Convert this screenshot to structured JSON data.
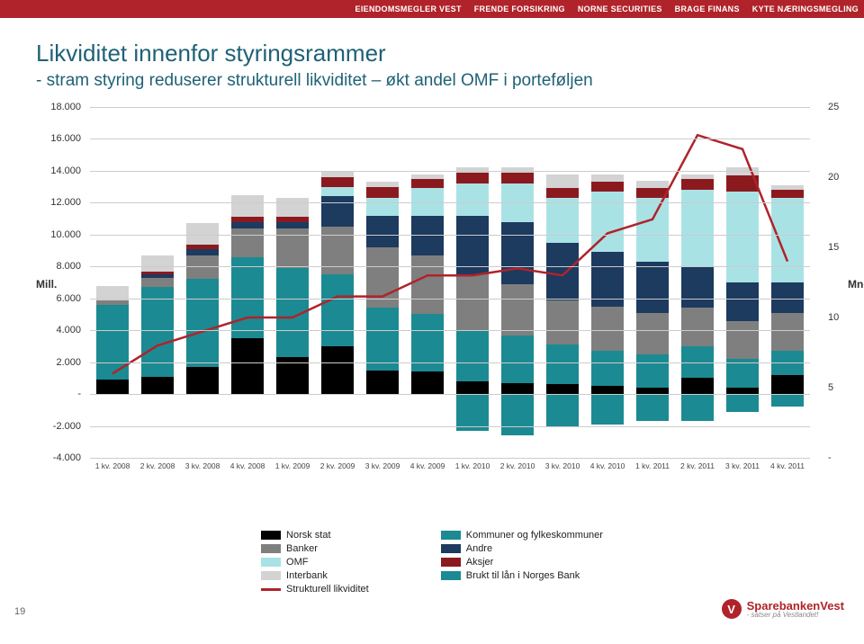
{
  "topbar": {
    "items": [
      "EIENDOMSMEGLER VEST",
      "FRENDE FORSIKRING",
      "NORNE SECURITIES",
      "BRAGE FINANS",
      "KYTE NÆRINGSMEGLING"
    ],
    "bg_color": "#b0232a",
    "text_color": "#ffffff"
  },
  "title": {
    "line1": "Likviditet innenfor styringsrammer",
    "line2": "- stram styring reduserer strukturell likviditet – økt andel OMF i porteføljen",
    "color": "#1f6176"
  },
  "chart": {
    "type": "stacked-bar-dual-axis-with-line",
    "left_axis": {
      "label": "Mill.",
      "min": -4000,
      "max": 18000,
      "ticks": [
        18000,
        16000,
        14000,
        12000,
        10000,
        8000,
        6000,
        4000,
        2000,
        0,
        -2000,
        -4000
      ],
      "tick_labels": [
        "18.000",
        "16.000",
        "14.000",
        "12.000",
        "10.000",
        "8.000",
        "6.000",
        "4.000",
        "2.000",
        "-",
        "-2.000",
        "-4.000"
      ]
    },
    "right_axis": {
      "label": "Mnd.",
      "min": 0,
      "max": 25,
      "ticks": [
        25,
        20,
        15,
        10,
        5,
        0
      ],
      "tick_labels": [
        "25",
        "20",
        "15",
        "10",
        "5",
        "-"
      ]
    },
    "categories": [
      "1 kv. 2008",
      "2 kv. 2008",
      "3 kv. 2008",
      "4 kv. 2008",
      "1 kv. 2009",
      "2 kv. 2009",
      "3 kv. 2009",
      "4 kv. 2009",
      "1 kv. 2010",
      "2 kv. 2010",
      "3 kv. 2010",
      "4 kv. 2010",
      "1 kv. 2011",
      "2 kv. 2011",
      "3 kv. 2011",
      "4 kv. 2011"
    ],
    "grid_color": "#cccccc",
    "series_order": [
      "norsk_stat",
      "kommuner",
      "banker",
      "andre",
      "omf",
      "aksjer",
      "interbank",
      "brukt_lan"
    ],
    "colors": {
      "norsk_stat": "#000000",
      "kommuner": "#1c8a92",
      "banker": "#7f7f7f",
      "andre": "#1d3a5f",
      "omf": "#a9e2e5",
      "aksjer": "#8b1a1f",
      "interbank": "#d3d3d3",
      "brukt_lan": "#1c8a92",
      "line": "#b0232a"
    },
    "stacks": [
      {
        "norsk_stat": 900,
        "kommuner": 4700,
        "banker": 300,
        "andre": 0,
        "omf": 0,
        "aksjer": 0,
        "interbank": 900,
        "brukt_lan": 0
      },
      {
        "norsk_stat": 1100,
        "kommuner": 5600,
        "banker": 600,
        "andre": 200,
        "omf": 0,
        "aksjer": 200,
        "interbank": 1000,
        "brukt_lan": 0
      },
      {
        "norsk_stat": 1700,
        "kommuner": 5500,
        "banker": 1500,
        "andre": 400,
        "omf": 0,
        "aksjer": 300,
        "interbank": 1300,
        "brukt_lan": 0
      },
      {
        "norsk_stat": 3500,
        "kommuner": 5100,
        "banker": 1800,
        "andre": 400,
        "omf": 0,
        "aksjer": 300,
        "interbank": 1400,
        "brukt_lan": 0
      },
      {
        "norsk_stat": 2300,
        "kommuner": 5600,
        "banker": 2500,
        "andre": 400,
        "omf": 0,
        "aksjer": 300,
        "interbank": 1200,
        "brukt_lan": 0
      },
      {
        "norsk_stat": 3000,
        "kommuner": 4500,
        "banker": 3000,
        "andre": 1900,
        "omf": 600,
        "aksjer": 600,
        "interbank": 400,
        "brukt_lan": 0
      },
      {
        "norsk_stat": 1500,
        "kommuner": 3900,
        "banker": 3800,
        "andre": 2000,
        "omf": 1100,
        "aksjer": 700,
        "interbank": 300,
        "brukt_lan": 0
      },
      {
        "norsk_stat": 1400,
        "kommuner": 3600,
        "banker": 3700,
        "andre": 2500,
        "omf": 1700,
        "aksjer": 600,
        "interbank": 300,
        "brukt_lan": 0
      },
      {
        "norsk_stat": 800,
        "kommuner": 3200,
        "banker": 3500,
        "andre": 3700,
        "omf": 2000,
        "aksjer": 700,
        "interbank": 300,
        "brukt_lan": -2300
      },
      {
        "norsk_stat": 700,
        "kommuner": 3000,
        "banker": 3200,
        "andre": 3900,
        "omf": 2400,
        "aksjer": 700,
        "interbank": 300,
        "brukt_lan": -2600
      },
      {
        "norsk_stat": 600,
        "kommuner": 2500,
        "banker": 2800,
        "andre": 3600,
        "omf": 2800,
        "aksjer": 600,
        "interbank": 900,
        "brukt_lan": -2000
      },
      {
        "norsk_stat": 500,
        "kommuner": 2200,
        "banker": 2800,
        "andre": 3400,
        "omf": 3800,
        "aksjer": 600,
        "interbank": 500,
        "brukt_lan": -1900
      },
      {
        "norsk_stat": 400,
        "kommuner": 2100,
        "banker": 2600,
        "andre": 3200,
        "omf": 4000,
        "aksjer": 600,
        "interbank": 500,
        "brukt_lan": -1700
      },
      {
        "norsk_stat": 1000,
        "kommuner": 2000,
        "banker": 2400,
        "andre": 2600,
        "omf": 4800,
        "aksjer": 700,
        "interbank": 300,
        "brukt_lan": -1700
      },
      {
        "norsk_stat": 400,
        "kommuner": 1800,
        "banker": 2400,
        "andre": 2400,
        "omf": 5700,
        "aksjer": 1000,
        "interbank": 500,
        "brukt_lan": -1100
      },
      {
        "norsk_stat": 1200,
        "kommuner": 1500,
        "banker": 2400,
        "andre": 1900,
        "omf": 5300,
        "aksjer": 500,
        "interbank": 300,
        "brukt_lan": -800
      }
    ],
    "line_values": [
      6,
      8,
      9,
      10,
      10,
      11.5,
      11.5,
      13,
      13,
      13.5,
      13,
      16,
      17,
      23,
      22,
      14
    ]
  },
  "legend": {
    "left": [
      {
        "key": "norsk_stat",
        "label": "Norsk stat"
      },
      {
        "key": "banker",
        "label": "Banker"
      },
      {
        "key": "omf",
        "label": "OMF"
      },
      {
        "key": "interbank",
        "label": "Interbank"
      },
      {
        "key": "line",
        "label": "Strukturell likviditet",
        "is_line": true
      }
    ],
    "right": [
      {
        "key": "kommuner",
        "label": "Kommuner og fylkeskommuner"
      },
      {
        "key": "andre",
        "label": "Andre"
      },
      {
        "key": "aksjer",
        "label": "Aksjer"
      },
      {
        "key": "brukt_lan",
        "label": "Brukt til lån i Norges Bank"
      }
    ]
  },
  "footer": {
    "page": "19",
    "logo_name": "SparebankenVest",
    "logo_tag": "- satser på Vestlandet!"
  }
}
